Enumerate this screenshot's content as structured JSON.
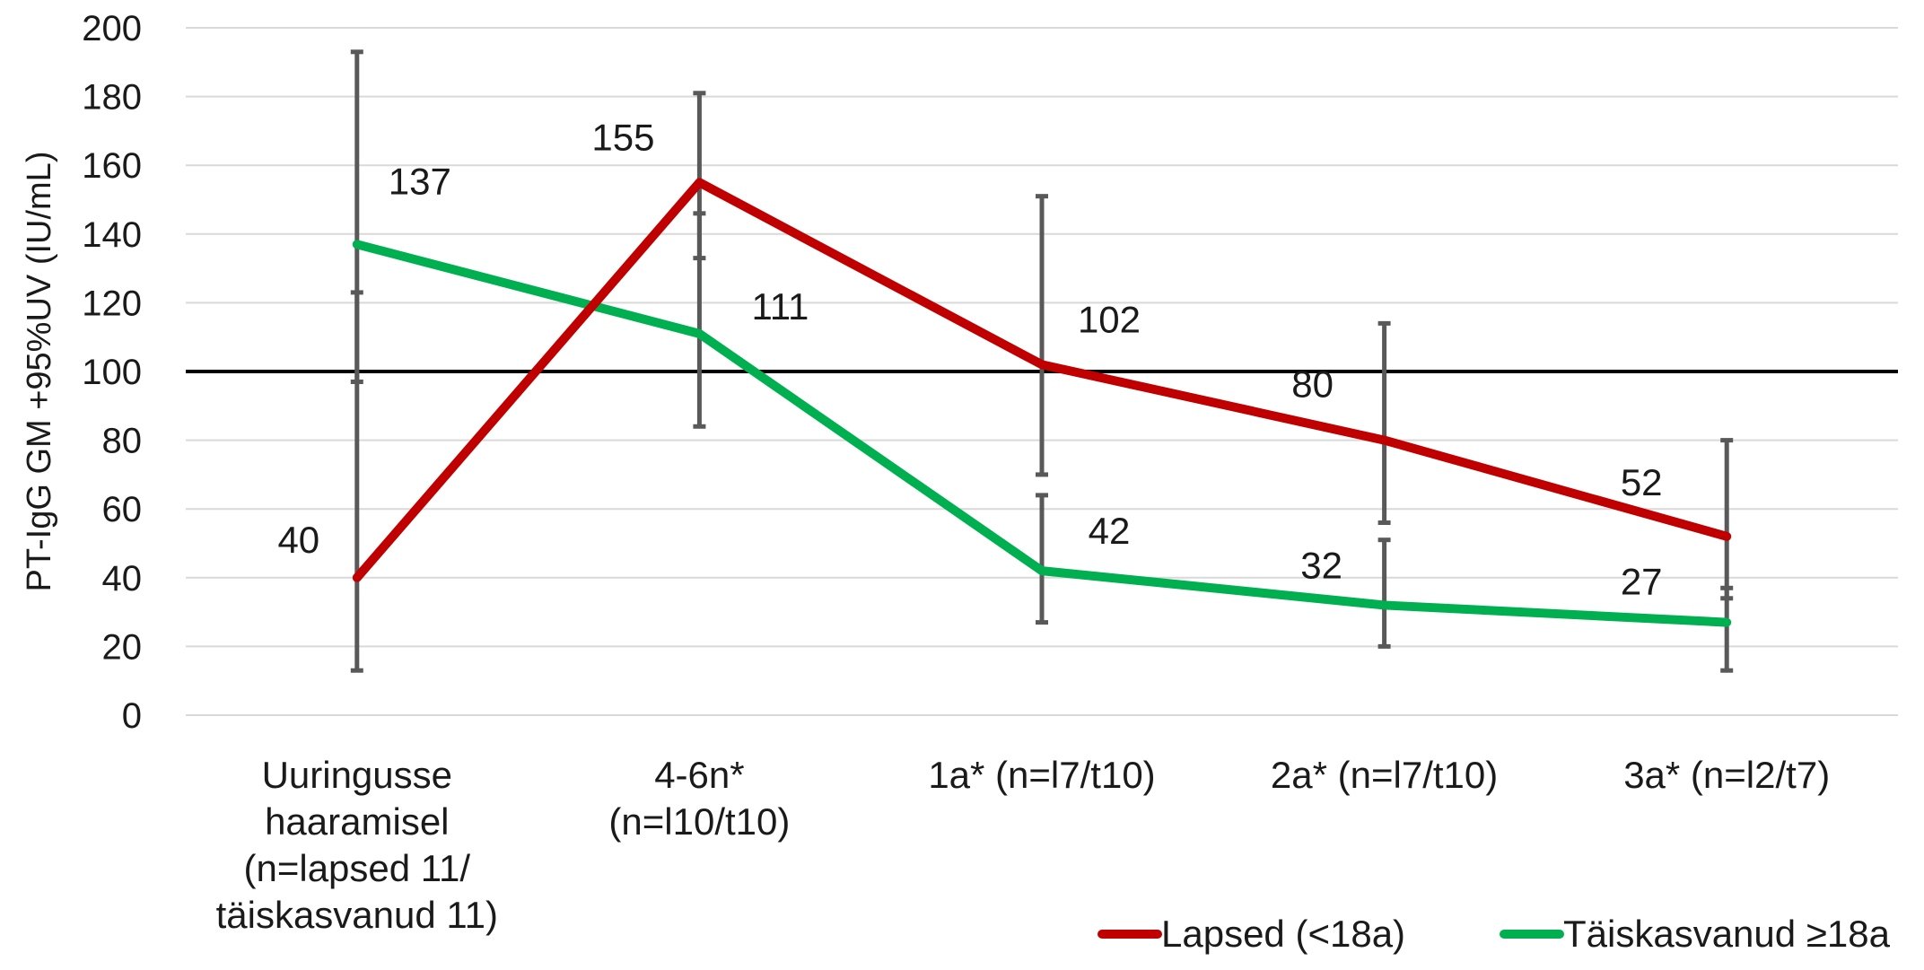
{
  "chart_data": {
    "type": "line",
    "ylabel": "PT-IgG GM +95%UV (IU/mL)",
    "xlabel": "",
    "ylim": [
      0,
      200
    ],
    "y_ticks": [
      "0",
      "20",
      "40",
      "60",
      "80",
      "100",
      "120",
      "140",
      "160",
      "180",
      "200"
    ],
    "grid": true,
    "legend_position": "bottom-right",
    "reference_line": {
      "y": 100,
      "color": "#000000"
    },
    "categories": [
      [
        "Uuringusse",
        "haaramisel",
        "(n=lapsed 11/",
        "täiskasvanud 11)"
      ],
      [
        "4-6n*",
        "(n=l10/t10)"
      ],
      [
        "1a* (n=l7/t10)"
      ],
      [
        "2a* (n=l7/t10)"
      ],
      [
        "3a* (n=l2/t7)"
      ]
    ],
    "series": [
      {
        "name": "Lapsed (<18a)",
        "color": "#c00000",
        "values": [
          40,
          155,
          102,
          80,
          52
        ],
        "labels": [
          "40",
          "155",
          "102",
          "80",
          "52"
        ],
        "error_low": [
          13,
          133,
          70,
          56,
          34
        ],
        "error_high": [
          123,
          181,
          151,
          114,
          80
        ]
      },
      {
        "name": "Täiskasvanud ≥18a",
        "color": "#00b050",
        "values": [
          137,
          111,
          42,
          32,
          27
        ],
        "labels": [
          "137",
          "111",
          "42",
          "32",
          "27"
        ],
        "error_low": [
          97,
          84,
          27,
          20,
          13
        ],
        "error_high": [
          193,
          146,
          64,
          51,
          37
        ]
      }
    ],
    "error_bar_color": "#595959"
  }
}
